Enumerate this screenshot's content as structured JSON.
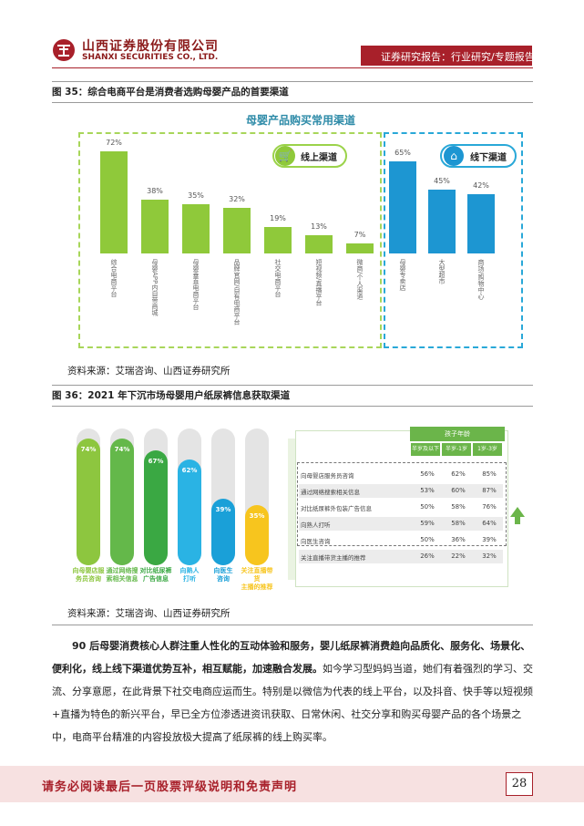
{
  "header": {
    "company_cn": "山西证券股份有限公司",
    "company_en": "SHANXI SECURITIES CO., LTD.",
    "report_tag": "证券研究报告：行业研究/专题报告"
  },
  "figure35": {
    "caption": "图 35：综合电商平台是消费者选购母婴产品的首要渠道",
    "source": "资料来源：艾瑞咨询、山西证券研究所"
  },
  "chart_data": [
    {
      "type": "bar",
      "title": "母婴产品购买常用渠道",
      "groups": [
        {
          "name": "线上渠道",
          "categories": [
            "综合电商平台",
            "母婴APP内自带商城",
            "母婴垂直电商平台",
            "品牌官网/自有电商平台",
            "社交电商平台",
            "短视频/直播平台",
            "微商/个人渠道"
          ],
          "values": [
            72,
            38,
            35,
            32,
            19,
            13,
            7
          ],
          "value_labels": [
            "72%",
            "38%",
            "35%",
            "32%",
            "19%",
            "13%",
            "7%"
          ]
        },
        {
          "name": "线下渠道",
          "categories": [
            "母婴专卖店",
            "大型超市",
            "商场/购物中心"
          ],
          "values": [
            65,
            45,
            42
          ],
          "value_labels": [
            "65%",
            "45%",
            "42%"
          ]
        }
      ],
      "colors": {
        "online": "#8fc93a",
        "offline": "#1d96d2"
      }
    },
    {
      "type": "bar",
      "categories": [
        "向母婴店服务员咨询",
        "通过网络搜索相关信息",
        "对比纸尿裤外包装广告信息",
        "向熟人打听",
        "向医生咨询",
        "关注直播带货主播的推荐"
      ],
      "values": [
        74,
        74,
        67,
        62,
        39,
        35
      ],
      "value_labels": [
        "74%",
        "74%",
        "67%",
        "62%",
        "39%",
        "35%"
      ],
      "colors": [
        "#8dc63f",
        "#64b84a",
        "#3aa843",
        "#2ab3e4",
        "#1aa0d8",
        "#f7c51e"
      ]
    },
    {
      "type": "table",
      "header": "孩子年龄",
      "columns": [
        "半岁及以下",
        "半岁-1岁",
        "1岁-3岁"
      ],
      "rows": [
        {
          "label": "向母婴店服务员咨询",
          "values": [
            "56%",
            "62%",
            "85%"
          ]
        },
        {
          "label": "通过网络搜索相关信息",
          "values": [
            "53%",
            "60%",
            "87%"
          ]
        },
        {
          "label": "对比纸尿裤外包装广告信息",
          "values": [
            "50%",
            "58%",
            "76%"
          ]
        },
        {
          "label": "向熟人打听",
          "values": [
            "59%",
            "58%",
            "64%"
          ]
        },
        {
          "label": "向医生咨询",
          "values": [
            "50%",
            "36%",
            "39%"
          ]
        },
        {
          "label": "关注直播带货主播的推荐",
          "values": [
            "26%",
            "22%",
            "32%"
          ]
        }
      ]
    }
  ],
  "figure36": {
    "caption": "图 36：2021 年下沉市场母婴用户纸尿裤信息获取渠道",
    "tube_labels": [
      "向母婴店服\n务员咨询",
      "通过网络搜\n索相关信息",
      "对比纸尿裤\n广告信息",
      "向熟人\n打听",
      "向医生\n咨询",
      "关注直播带货\n主播的推荐"
    ],
    "source": "资料来源：艾瑞咨询、山西证券研究所"
  },
  "body": {
    "bold_text": "90 后母婴消费核心人群注重人性化的互动体验和服务，婴儿纸尿裤消费趋向品质化、服务化、场景化、便利化，线上线下渠道优势互补，相互赋能，加速融合发展。",
    "text": "如今学习型妈妈当道，她们有着强烈的学习、交流、分享意愿，在此背景下社交电商应运而生。特别是以微信为代表的线上平台，以及抖音、快手等以短视频+直播为特色的新兴平台，早已全方位渗透进资讯获取、日常休闲、社交分享和购买母婴产品的各个场景之中，电商平台精准的内容投放极大提高了纸尿裤的线上购买率。"
  },
  "footer": {
    "disclaimer": "请务必阅读最后一页股票评级说明和免责声明",
    "page_number": "28"
  }
}
